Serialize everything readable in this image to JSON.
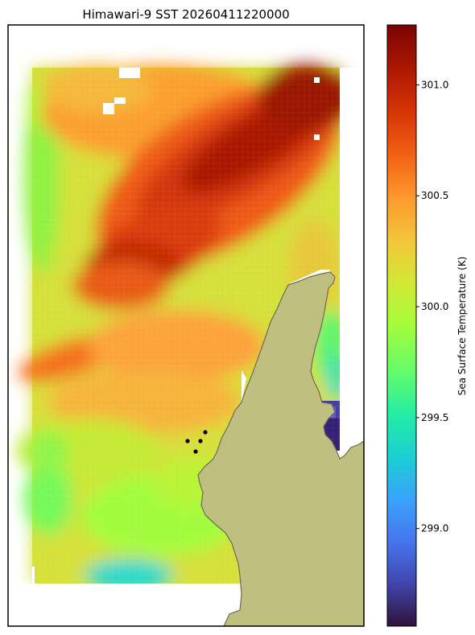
{
  "chart_data": {
    "type": "heatmap",
    "title": "Himawari-9 SST 20260411220000",
    "colorbar": {
      "label": "Sea Surface Temperature (K)",
      "ticks": [
        299.0,
        299.5,
        300.0,
        300.5,
        301.0
      ],
      "tick_labels": [
        "299.0",
        "299.5",
        "300.0",
        "300.5",
        "301.0"
      ],
      "range": [
        298.56,
        301.27
      ],
      "colormap": "turbo"
    },
    "land_color": "#bfbf80",
    "coastline_color": "#6d6d55",
    "observation_points": [
      {
        "id": 1
      },
      {
        "id": 2
      },
      {
        "id": 3
      },
      {
        "id": 4
      }
    ],
    "point_color": "#000000",
    "grid": false,
    "axes_ticks": false
  }
}
